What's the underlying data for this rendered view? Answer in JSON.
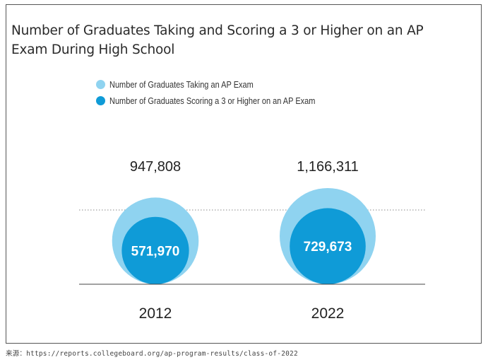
{
  "chart_data": {
    "type": "bubble",
    "title": "Number of Graduates Taking and Scoring a 3 or Higher on an AP Exam During High School",
    "legend_placement": "top-left",
    "series": [
      {
        "name": "Number of Graduates Taking an AP Exam",
        "color": "#8fd3f0",
        "values": [
          947808,
          1166311
        ]
      },
      {
        "name": "Number of Graduates Scoring a 3 or Higher on an AP Exam",
        "color": "#0f9bd7",
        "values": [
          571970,
          729673
        ]
      }
    ],
    "categories": [
      "2012",
      "2022"
    ],
    "labels": {
      "taking": [
        "947,808",
        "1,166,311"
      ],
      "scoring": [
        "571,970",
        "729,673"
      ]
    }
  },
  "source_text": "来源：https://reports.collegeboard.org/ap-program-results/class-of-2022"
}
